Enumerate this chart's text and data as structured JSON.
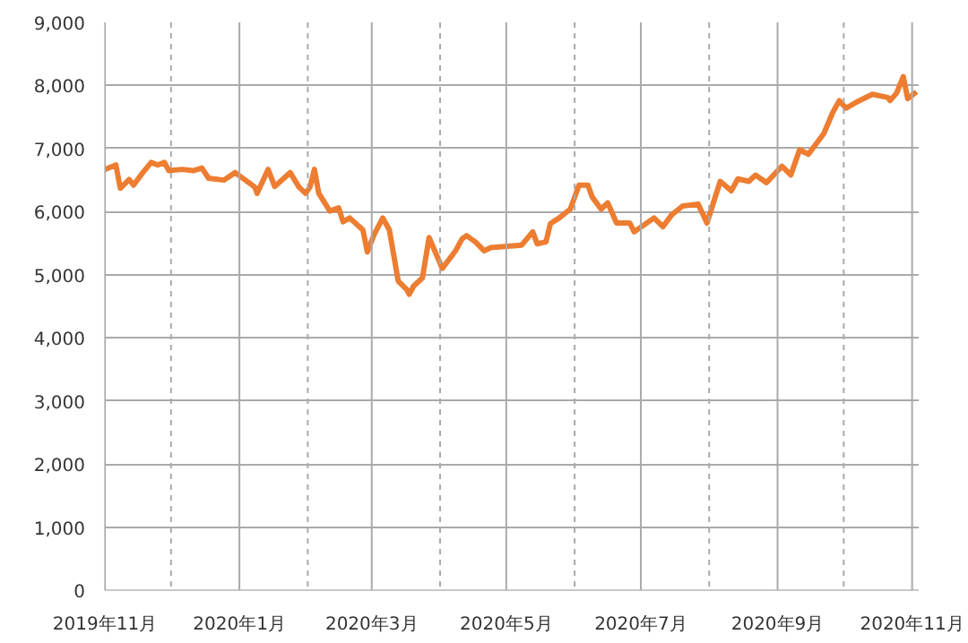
{
  "chart_data": {
    "type": "line",
    "x": [
      "2019-11-01",
      "2019-11-06",
      "2019-11-08",
      "2019-11-12",
      "2019-11-14",
      "2019-11-18",
      "2019-11-22",
      "2019-11-25",
      "2019-11-28",
      "2019-11-30",
      "2019-12-06",
      "2019-12-11",
      "2019-12-15",
      "2019-12-18",
      "2019-12-25",
      "2019-12-30",
      "2020-01-08",
      "2020-01-09",
      "2020-01-14",
      "2020-01-17",
      "2020-01-24",
      "2020-01-28",
      "2020-01-31",
      "2020-02-02",
      "2020-02-04",
      "2020-02-06",
      "2020-02-11",
      "2020-02-15",
      "2020-02-17",
      "2020-02-20",
      "2020-02-26",
      "2020-02-28",
      "2020-03-02",
      "2020-03-06",
      "2020-03-09",
      "2020-03-13",
      "2020-03-17",
      "2020-03-18",
      "2020-03-20",
      "2020-03-24",
      "2020-03-27",
      "2020-04-02",
      "2020-04-08",
      "2020-04-11",
      "2020-04-13",
      "2020-04-17",
      "2020-04-21",
      "2020-04-24",
      "2020-05-08",
      "2020-05-13",
      "2020-05-15",
      "2020-05-19",
      "2020-05-21",
      "2020-05-25",
      "2020-05-30",
      "2020-06-03",
      "2020-06-07",
      "2020-06-09",
      "2020-06-13",
      "2020-06-16",
      "2020-06-20",
      "2020-06-26",
      "2020-06-28",
      "2020-07-07",
      "2020-07-11",
      "2020-07-15",
      "2020-07-20",
      "2020-07-27",
      "2020-07-31",
      "2020-08-06",
      "2020-08-11",
      "2020-08-14",
      "2020-08-19",
      "2020-08-22",
      "2020-08-27",
      "2020-09-03",
      "2020-09-07",
      "2020-09-11",
      "2020-09-15",
      "2020-09-22",
      "2020-09-26",
      "2020-09-29",
      "2020-10-02",
      "2020-10-07",
      "2020-10-14",
      "2020-10-21",
      "2020-10-22",
      "2020-10-25",
      "2020-10-28",
      "2020-10-30",
      "2020-11-03"
    ],
    "series": [
      {
        "color": "#ed7d31",
        "values": [
          6670,
          6740,
          6370,
          6510,
          6420,
          6610,
          6780,
          6740,
          6780,
          6650,
          6670,
          6650,
          6690,
          6530,
          6500,
          6620,
          6390,
          6290,
          6670,
          6400,
          6620,
          6390,
          6290,
          6390,
          6670,
          6290,
          6010,
          6060,
          5840,
          5900,
          5710,
          5360,
          5630,
          5900,
          5710,
          4900,
          4760,
          4690,
          4820,
          4950,
          5590,
          5100,
          5380,
          5570,
          5620,
          5520,
          5380,
          5430,
          5470,
          5680,
          5490,
          5520,
          5810,
          5900,
          6040,
          6420,
          6420,
          6230,
          6040,
          6140,
          5820,
          5820,
          5680,
          5900,
          5760,
          5950,
          6090,
          6120,
          5820,
          6480,
          6330,
          6520,
          6480,
          6580,
          6460,
          6720,
          6580,
          6980,
          6910,
          7240,
          7570,
          7760,
          7640,
          7740,
          7860,
          7810,
          7760,
          7880,
          8140,
          7790,
          7900
        ]
      }
    ],
    "xlim": [
      "2019-11-01",
      "2020-11-04"
    ],
    "xticks": [
      {
        "value": "2019-11-01",
        "label": "2019年11月"
      },
      {
        "value": "2019-12-01",
        "label": null
      },
      {
        "value": "2020-01-01",
        "label": "2020年1月"
      },
      {
        "value": "2020-02-01",
        "label": null
      },
      {
        "value": "2020-03-01",
        "label": "2020年3月"
      },
      {
        "value": "2020-04-01",
        "label": null
      },
      {
        "value": "2020-05-01",
        "label": "2020年5月"
      },
      {
        "value": "2020-06-01",
        "label": null
      },
      {
        "value": "2020-07-01",
        "label": "2020年7月"
      },
      {
        "value": "2020-08-01",
        "label": null
      },
      {
        "value": "2020-09-01",
        "label": "2020年9月"
      },
      {
        "value": "2020-10-01",
        "label": null
      },
      {
        "value": "2020-11-01",
        "label": "2020年11月"
      }
    ],
    "ylim": [
      0,
      9000
    ],
    "yticks": [
      0,
      {
        "value": 1000,
        "label": "1,000"
      },
      {
        "value": 2000,
        "label": "2,000"
      },
      {
        "value": 3000,
        "label": "3,000"
      },
      {
        "value": 4000,
        "label": "4,000"
      },
      {
        "value": 5000,
        "label": "5,000"
      },
      {
        "value": 6000,
        "label": "6,000"
      },
      {
        "value": 7000,
        "label": "7,000"
      },
      {
        "value": 8000,
        "label": "8,000"
      },
      {
        "value": 9000,
        "label": "9,000"
      }
    ],
    "grid": true,
    "line_style": "solid"
  }
}
